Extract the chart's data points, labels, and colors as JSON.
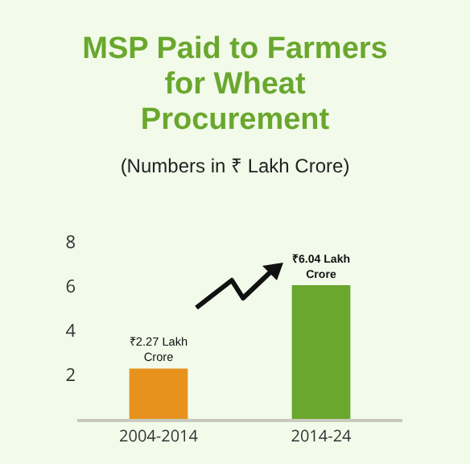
{
  "chart_data": {
    "type": "bar",
    "title": "MSP Paid to Farmers for Wheat Procurement",
    "subtitle": "(Numbers in ₹ Lakh Crore)",
    "categories": [
      "2004-2014",
      "2014-24"
    ],
    "values": [
      2.27,
      6.04
    ],
    "colors": [
      "#e8921e",
      "#6aa72e"
    ],
    "value_labels": [
      "₹2.27 Lakh Crore",
      "₹6.04 Lakh Crore"
    ],
    "ylim": [
      0,
      8
    ],
    "yticks": [
      2,
      4,
      6,
      8
    ],
    "grid": false
  }
}
